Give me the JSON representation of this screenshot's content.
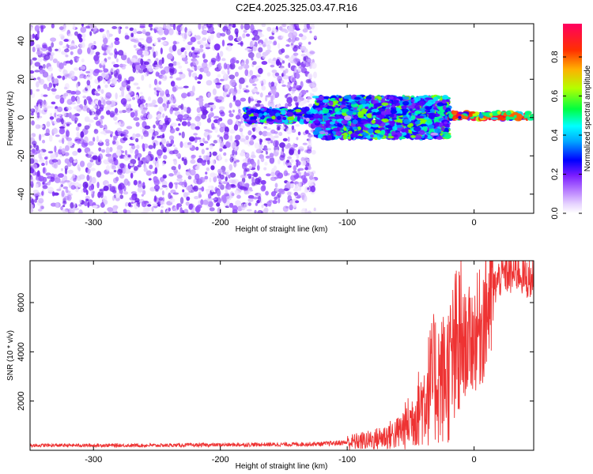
{
  "title": "C2E4.2025.325.03.47.R16",
  "colors": {
    "axis": "#000000",
    "snr_line": "#ee3333",
    "colormap": [
      "#ffffff",
      "#cfa8ff",
      "#8a2bff",
      "#5a1cf0",
      "#0000ff",
      "#00d8ff",
      "#00ff60",
      "#c8ff00",
      "#ffa000",
      "#ff0000",
      "#ff0060"
    ]
  },
  "chart_data": [
    {
      "type": "heatmap",
      "xlabel": "Height of straight line (km)",
      "ylabel": "Frequency (Hz)",
      "xlim": [
        -350,
        47
      ],
      "ylim": [
        -50,
        49
      ],
      "x_ticks": [
        -300,
        -200,
        -100,
        0
      ],
      "y_ticks": [
        -40,
        -20,
        0,
        20,
        40
      ],
      "colorbar": {
        "label": "Normalized spectral amplitude",
        "range": [
          0,
          0.97
        ],
        "ticks": [
          "0.0",
          "0.2",
          "0.4",
          "0.6",
          "0.8"
        ]
      },
      "regions": [
        {
          "x": [
            -350,
            -125
          ],
          "y": [
            -50,
            49
          ],
          "amplitude": 0.05
        },
        {
          "x": [
            -180,
            -125
          ],
          "y": [
            -3,
            5
          ],
          "amplitude": 0.3
        },
        {
          "x": [
            -125,
            -20
          ],
          "y": [
            -12,
            12
          ],
          "amplitude": 0.35
        },
        {
          "x": [
            -20,
            47
          ],
          "y": [
            -1,
            3
          ],
          "amplitude": 0.9
        }
      ]
    },
    {
      "type": "line",
      "xlabel": "Height of straight line (km)",
      "ylabel": "SNR (10 * v/v)",
      "xlim": [
        -350,
        47
      ],
      "ylim": [
        0,
        7700
      ],
      "x_ticks": [
        -300,
        -200,
        -100,
        0
      ],
      "y_ticks": [
        2000,
        4000,
        6000
      ],
      "series": [
        {
          "x": [
            -350,
            -300,
            -250,
            -200,
            -150,
            -120,
            -100,
            -80,
            -60,
            -50,
            -40,
            -35,
            -30,
            -25,
            -20,
            -15,
            -10,
            -5,
            0,
            5,
            10,
            15,
            20,
            25,
            30,
            35,
            40,
            47
          ],
          "values": [
            200,
            200,
            200,
            220,
            240,
            260,
            320,
            420,
            700,
            1200,
            2000,
            2600,
            3000,
            2900,
            3200,
            3800,
            4200,
            4400,
            4600,
            5000,
            5800,
            6500,
            7000,
            7200,
            7100,
            7300,
            7000,
            6900
          ]
        }
      ]
    }
  ]
}
